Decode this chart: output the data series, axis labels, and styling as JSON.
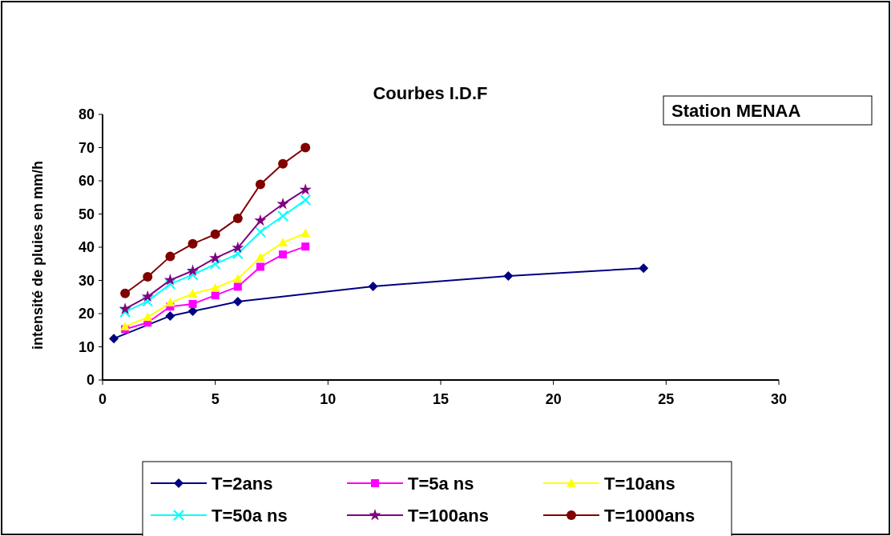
{
  "chart_data": {
    "type": "line",
    "title": "Courbes I.D.F",
    "ylabel": "intensité de pluies en mm/h",
    "annotations": [
      "Station MENAA"
    ],
    "xlim": [
      0,
      30
    ],
    "xticks": [
      0,
      5,
      10,
      15,
      20,
      25,
      30
    ],
    "ylim": [
      0,
      80
    ],
    "yticks": [
      0,
      10,
      20,
      30,
      40,
      50,
      60,
      70,
      80
    ],
    "grid": false,
    "legend": "bottom",
    "line_style": "solid",
    "series": [
      {
        "name": "T=2ans",
        "color": "#000080",
        "marker": "diamond",
        "x": [
          0.5,
          1,
          2,
          3,
          4,
          6,
          12,
          18,
          24
        ],
        "values": [
          12.5,
          null,
          null,
          19.3,
          20.7,
          23.6,
          28.2,
          31.3,
          33.7
        ]
      },
      {
        "name": "T=5a ns",
        "color": "#ff00ff",
        "marker": "square",
        "x": [
          1,
          2,
          3,
          4,
          5,
          6,
          7,
          8,
          9
        ],
        "values": [
          15.3,
          17.3,
          22.1,
          22.9,
          25.5,
          28.1,
          34.1,
          37.8,
          40.2
        ]
      },
      {
        "name": "T=10ans",
        "color": "#ffff00",
        "marker": "triangle",
        "x": [
          1,
          2,
          3,
          4,
          5,
          6,
          7,
          8,
          9
        ],
        "values": [
          16.1,
          18.9,
          23.3,
          26.0,
          27.7,
          30.5,
          36.9,
          41.4,
          44.2
        ]
      },
      {
        "name": "T=50a ns",
        "color": "#00ffff",
        "marker": "cross",
        "x": [
          1,
          2,
          3,
          4,
          5,
          6,
          7,
          8,
          9
        ],
        "values": [
          20.5,
          23.7,
          28.9,
          31.7,
          34.9,
          38.0,
          44.6,
          49.4,
          54.2
        ]
      },
      {
        "name": "T=100ans",
        "color": "#800080",
        "marker": "star",
        "x": [
          1,
          2,
          3,
          4,
          5,
          6,
          7,
          8,
          9
        ],
        "values": [
          21.4,
          25.1,
          30.1,
          32.9,
          36.7,
          39.8,
          48.0,
          53.0,
          57.3
        ]
      },
      {
        "name": "T=1000ans",
        "color": "#800000",
        "marker": "circle",
        "x": [
          1,
          2,
          3,
          4,
          5,
          6,
          7,
          8,
          9
        ],
        "values": [
          26.1,
          31.1,
          37.2,
          41.0,
          43.9,
          48.7,
          58.9,
          65.1,
          70.0
        ]
      }
    ]
  }
}
